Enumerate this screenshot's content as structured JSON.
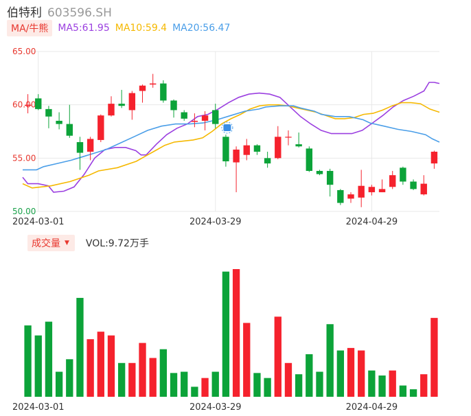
{
  "header": {
    "name": "伯特利",
    "code": "603596.SH"
  },
  "ma_legend": {
    "tag": "MA/牛熊",
    "items": [
      {
        "label": "MA5:61.95",
        "color": "#9b3fe0"
      },
      {
        "label": "MA10:59.4",
        "color": "#f5b800"
      },
      {
        "label": "MA20:56.47",
        "color": "#4a9ee8"
      }
    ]
  },
  "volume_legend": {
    "tag": "成交量",
    "text": "VOL:9.72万手"
  },
  "colors": {
    "up": "#f5222d",
    "down": "#0ca339",
    "grid": "#e8e8e8"
  },
  "marker_icon": "bull-bear-badge-icon",
  "chart_data": [
    {
      "type": "candlestick",
      "ylim": [
        50,
        65
      ],
      "yticks": [
        "65.00",
        "60.00",
        "55.00",
        "50.00"
      ],
      "x_tick_labels": [
        {
          "label": "2024-03-01",
          "index": 1
        },
        {
          "label": "2024-03-29",
          "index": 18
        },
        {
          "label": "2024-04-29",
          "index": 33
        }
      ],
      "grid": true,
      "candles": [
        {
          "o": 59.9,
          "c": 60.0,
          "h": 61.0,
          "l": 59.2
        },
        {
          "o": 60.6,
          "c": 59.6,
          "h": 61.0,
          "l": 59.5
        },
        {
          "o": 59.6,
          "c": 58.9,
          "h": 59.9,
          "l": 57.8
        },
        {
          "o": 58.5,
          "c": 58.2,
          "h": 59.3,
          "l": 57.7
        },
        {
          "o": 58.2,
          "c": 57.1,
          "h": 60.0,
          "l": 56.9
        },
        {
          "o": 56.5,
          "c": 55.5,
          "h": 57.0,
          "l": 53.9
        },
        {
          "o": 55.6,
          "c": 56.8,
          "h": 57.0,
          "l": 54.8
        },
        {
          "o": 56.7,
          "c": 59.0,
          "h": 59.1,
          "l": 56.5
        },
        {
          "o": 59.0,
          "c": 60.1,
          "h": 60.8,
          "l": 58.9
        },
        {
          "o": 60.1,
          "c": 59.9,
          "h": 61.4,
          "l": 59.7
        },
        {
          "o": 59.5,
          "c": 61.1,
          "h": 61.3,
          "l": 58.6
        },
        {
          "o": 61.3,
          "c": 61.8,
          "h": 61.9,
          "l": 60.2
        },
        {
          "o": 61.9,
          "c": 62.0,
          "h": 62.9,
          "l": 61.6
        },
        {
          "o": 62.0,
          "c": 60.4,
          "h": 62.3,
          "l": 60.2
        },
        {
          "o": 60.4,
          "c": 59.5,
          "h": 60.5,
          "l": 58.8
        },
        {
          "o": 59.3,
          "c": 58.7,
          "h": 59.5,
          "l": 58.5
        },
        {
          "o": 58.4,
          "c": 58.5,
          "h": 59.2,
          "l": 57.9
        },
        {
          "o": 58.5,
          "c": 59.0,
          "h": 59.4,
          "l": 57.6
        },
        {
          "o": 59.5,
          "c": 58.2,
          "h": 60.1,
          "l": 57.8
        },
        {
          "o": 57.0,
          "c": 54.7,
          "h": 57.2,
          "l": 54.2
        },
        {
          "o": 54.6,
          "c": 55.8,
          "h": 56.1,
          "l": 51.8
        },
        {
          "o": 55.3,
          "c": 56.2,
          "h": 56.8,
          "l": 54.8
        },
        {
          "o": 56.2,
          "c": 55.6,
          "h": 56.3,
          "l": 55.3
        },
        {
          "o": 55.0,
          "c": 54.5,
          "h": 55.6,
          "l": 54.1
        },
        {
          "o": 55.0,
          "c": 57.0,
          "h": 58.0,
          "l": 54.9
        },
        {
          "o": 57.0,
          "c": 57.0,
          "h": 57.6,
          "l": 56.2
        },
        {
          "o": 56.3,
          "c": 56.1,
          "h": 57.4,
          "l": 56.0
        },
        {
          "o": 55.9,
          "c": 53.8,
          "h": 56.1,
          "l": 53.7
        },
        {
          "o": 53.8,
          "c": 53.5,
          "h": 53.9,
          "l": 53.4
        },
        {
          "o": 53.8,
          "c": 52.5,
          "h": 54.0,
          "l": 51.4
        },
        {
          "o": 52.0,
          "c": 50.8,
          "h": 52.1,
          "l": 50.6
        },
        {
          "o": 51.2,
          "c": 51.6,
          "h": 51.8,
          "l": 50.8
        },
        {
          "o": 51.3,
          "c": 52.4,
          "h": 53.9,
          "l": 50.4
        },
        {
          "o": 51.8,
          "c": 52.3,
          "h": 52.5,
          "l": 51.5
        },
        {
          "o": 51.8,
          "c": 52.1,
          "h": 53.0,
          "l": 51.8
        },
        {
          "o": 52.3,
          "c": 53.4,
          "h": 53.8,
          "l": 52.1
        },
        {
          "o": 54.1,
          "c": 52.8,
          "h": 54.2,
          "l": 52.5
        },
        {
          "o": 52.8,
          "c": 52.1,
          "h": 53.0,
          "l": 52.0
        },
        {
          "o": 51.6,
          "c": 52.6,
          "h": 53.4,
          "l": 51.5
        },
        {
          "o": 54.5,
          "c": 55.6,
          "h": 55.7,
          "l": 54.0
        }
      ],
      "series": [
        {
          "name": "MA5",
          "color": "#9b3fe0",
          "points": [
            [
              0,
              53.2
            ],
            [
              1,
              52.6
            ],
            [
              3,
              52.6
            ],
            [
              5,
              52.4
            ],
            [
              6,
              51.8
            ],
            [
              8,
              51.9
            ],
            [
              10,
              52.3
            ],
            [
              12,
              53.5
            ],
            [
              14,
              55.0
            ],
            [
              16,
              55.8
            ],
            [
              18,
              56.0
            ],
            [
              20,
              56.0
            ],
            [
              22,
              55.7
            ],
            [
              23,
              55.3
            ],
            [
              24,
              55.3
            ],
            [
              26,
              56.3
            ],
            [
              28,
              57.2
            ],
            [
              30,
              57.8
            ],
            [
              32,
              58.2
            ],
            [
              34,
              58.9
            ],
            [
              36,
              59.1
            ],
            [
              38,
              59.6
            ],
            [
              40,
              60.2
            ],
            [
              42,
              60.7
            ],
            [
              44,
              61.0
            ],
            [
              46,
              61.1
            ],
            [
              48,
              61.0
            ],
            [
              50,
              60.7
            ],
            [
              52,
              59.8
            ],
            [
              54,
              58.9
            ],
            [
              56,
              58.2
            ],
            [
              58,
              57.6
            ],
            [
              60,
              57.3
            ],
            [
              62,
              57.3
            ],
            [
              64,
              57.3
            ],
            [
              66,
              57.6
            ],
            [
              68,
              58.3
            ],
            [
              70,
              59.0
            ],
            [
              72,
              59.8
            ],
            [
              74,
              60.4
            ],
            [
              76,
              60.8
            ],
            [
              78,
              61.3
            ],
            [
              79,
              62.1
            ],
            [
              80,
              62.1
            ],
            [
              81,
              62.0
            ]
          ]
        },
        {
          "name": "MA10",
          "color": "#f5b800",
          "points": [
            [
              0,
              52.6
            ],
            [
              2,
              52.2
            ],
            [
              6,
              52.4
            ],
            [
              10,
              52.8
            ],
            [
              14,
              53.4
            ],
            [
              16,
              53.8
            ],
            [
              20,
              54.1
            ],
            [
              24,
              54.7
            ],
            [
              26,
              55.2
            ],
            [
              28,
              55.7
            ],
            [
              30,
              56.2
            ],
            [
              32,
              56.5
            ],
            [
              36,
              56.7
            ],
            [
              38,
              56.9
            ],
            [
              40,
              57.5
            ],
            [
              42,
              58.2
            ],
            [
              44,
              58.7
            ],
            [
              46,
              59.1
            ],
            [
              48,
              59.6
            ],
            [
              50,
              59.9
            ],
            [
              52,
              60.0
            ],
            [
              54,
              60.0
            ],
            [
              56,
              59.9
            ],
            [
              58,
              59.7
            ],
            [
              60,
              59.5
            ],
            [
              62,
              59.3
            ],
            [
              64,
              59.0
            ],
            [
              66,
              58.7
            ],
            [
              68,
              58.7
            ],
            [
              70,
              58.8
            ],
            [
              72,
              59.1
            ],
            [
              74,
              59.2
            ],
            [
              76,
              59.5
            ],
            [
              78,
              59.9
            ],
            [
              80,
              60.2
            ],
            [
              82,
              60.2
            ],
            [
              84,
              60.1
            ],
            [
              86,
              59.6
            ],
            [
              88,
              59.3
            ]
          ]
        },
        {
          "name": "MA20",
          "color": "#4a9ee8",
          "points": [
            [
              0,
              53.9
            ],
            [
              4,
              53.9
            ],
            [
              6,
              54.2
            ],
            [
              10,
              54.5
            ],
            [
              14,
              54.8
            ],
            [
              16,
              55.0
            ],
            [
              20,
              55.4
            ],
            [
              24,
              55.8
            ],
            [
              28,
              56.4
            ],
            [
              32,
              57.0
            ],
            [
              36,
              57.6
            ],
            [
              40,
              58.0
            ],
            [
              44,
              58.2
            ],
            [
              48,
              58.2
            ],
            [
              52,
              58.3
            ],
            [
              56,
              58.6
            ],
            [
              60,
              59.0
            ],
            [
              64,
              59.4
            ],
            [
              68,
              59.6
            ],
            [
              70,
              59.8
            ],
            [
              74,
              59.9
            ],
            [
              78,
              59.9
            ],
            [
              80,
              59.7
            ],
            [
              84,
              59.4
            ],
            [
              86,
              59.1
            ],
            [
              90,
              58.9
            ],
            [
              94,
              58.9
            ],
            [
              98,
              58.6
            ],
            [
              100,
              58.3
            ],
            [
              104,
              58.0
            ],
            [
              108,
              57.7
            ],
            [
              112,
              57.5
            ],
            [
              116,
              57.2
            ],
            [
              118,
              56.8
            ],
            [
              120,
              56.5
            ]
          ]
        }
      ]
    },
    {
      "type": "bar",
      "title": "成交量",
      "volumes": [
        {
          "v": 0.57,
          "up": false
        },
        {
          "v": 0.49,
          "up": false
        },
        {
          "v": 0.6,
          "up": false
        },
        {
          "v": 0.2,
          "up": false
        },
        {
          "v": 0.3,
          "up": false
        },
        {
          "v": 0.79,
          "up": false
        },
        {
          "v": 0.46,
          "up": true
        },
        {
          "v": 0.52,
          "up": true
        },
        {
          "v": 0.49,
          "up": true
        },
        {
          "v": 0.27,
          "up": false
        },
        {
          "v": 0.27,
          "up": true
        },
        {
          "v": 0.43,
          "up": true
        },
        {
          "v": 0.31,
          "up": true
        },
        {
          "v": 0.38,
          "up": false
        },
        {
          "v": 0.19,
          "up": false
        },
        {
          "v": 0.2,
          "up": false
        },
        {
          "v": 0.08,
          "up": false
        },
        {
          "v": 0.15,
          "up": true
        },
        {
          "v": 0.2,
          "up": false
        },
        {
          "v": 1.0,
          "up": false
        },
        {
          "v": 1.02,
          "up": true
        },
        {
          "v": 0.59,
          "up": true
        },
        {
          "v": 0.19,
          "up": false
        },
        {
          "v": 0.15,
          "up": false
        },
        {
          "v": 0.64,
          "up": true
        },
        {
          "v": 0.27,
          "up": true
        },
        {
          "v": 0.18,
          "up": false
        },
        {
          "v": 0.34,
          "up": false
        },
        {
          "v": 0.2,
          "up": false
        },
        {
          "v": 0.58,
          "up": false
        },
        {
          "v": 0.37,
          "up": false
        },
        {
          "v": 0.39,
          "up": true
        },
        {
          "v": 0.37,
          "up": true
        },
        {
          "v": 0.21,
          "up": false
        },
        {
          "v": 0.17,
          "up": false
        },
        {
          "v": 0.21,
          "up": true
        },
        {
          "v": 0.09,
          "up": false
        },
        {
          "v": 0.06,
          "up": false
        },
        {
          "v": 0.18,
          "up": true
        },
        {
          "v": 0.63,
          "up": true
        }
      ]
    }
  ]
}
